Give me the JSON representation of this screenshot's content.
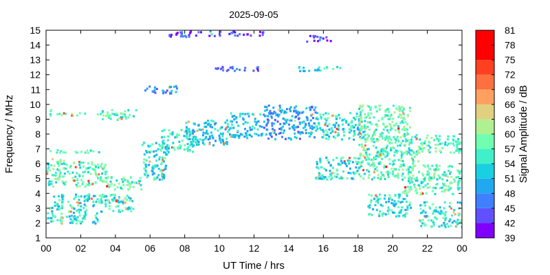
{
  "chart_data": {
    "type": "heatmap",
    "title": "2025-09-05",
    "xlabel": "UT Time / hrs",
    "ylabel": "Frequency / MHz",
    "colorbar_label": "Signal Amplitude / dB",
    "xlim": [
      0,
      24
    ],
    "ylim": [
      1,
      15
    ],
    "x_ticks": [
      "00",
      "02",
      "04",
      "06",
      "08",
      "10",
      "12",
      "14",
      "16",
      "18",
      "20",
      "22",
      "00"
    ],
    "y_ticks": [
      1,
      2,
      3,
      4,
      5,
      6,
      7,
      8,
      9,
      10,
      11,
      12,
      13,
      14,
      15
    ],
    "colorbar_ticks": [
      39,
      42,
      45,
      48,
      51,
      54,
      57,
      60,
      63,
      66,
      69,
      72,
      75,
      78,
      81
    ],
    "colorbar_levels": [
      {
        "min": 39,
        "max": 42,
        "color": "#8000ff"
      },
      {
        "min": 42,
        "max": 45,
        "color": "#6050ff"
      },
      {
        "min": 45,
        "max": 48,
        "color": "#4080ff"
      },
      {
        "min": 48,
        "max": 51,
        "color": "#20a8f0"
      },
      {
        "min": 51,
        "max": 54,
        "color": "#18d0e0"
      },
      {
        "min": 54,
        "max": 57,
        "color": "#40f0c8"
      },
      {
        "min": 57,
        "max": 60,
        "color": "#70ffb0"
      },
      {
        "min": 60,
        "max": 63,
        "color": "#b0f090"
      },
      {
        "min": 63,
        "max": 66,
        "color": "#e0d080"
      },
      {
        "min": 66,
        "max": 69,
        "color": "#ffa060"
      },
      {
        "min": 69,
        "max": 72,
        "color": "#ff7040"
      },
      {
        "min": 72,
        "max": 75,
        "color": "#ff4020"
      },
      {
        "min": 75,
        "max": 81,
        "color": "#ff0000"
      }
    ],
    "series": [
      {
        "regions": [
          {
            "t0": 0.0,
            "t1": 0.3,
            "f0": 9.2,
            "f1": 9.8,
            "db": 57
          },
          {
            "t0": 0.3,
            "t1": 3.0,
            "f0": 9.3,
            "f1": 9.5,
            "db": 57
          },
          {
            "t0": 3.0,
            "t1": 5.2,
            "f0": 9.0,
            "f1": 9.7,
            "db": 57
          },
          {
            "t0": 0.0,
            "t1": 3.3,
            "f0": 6.8,
            "f1": 7.0,
            "db": 57
          },
          {
            "t0": 0.0,
            "t1": 1.0,
            "f0": 6.2,
            "f1": 6.4,
            "db": 63
          },
          {
            "t0": 0.0,
            "t1": 3.5,
            "f0": 4.5,
            "f1": 6.2,
            "db": 57
          },
          {
            "t0": 3.5,
            "t1": 5.5,
            "f0": 4.3,
            "f1": 5.2,
            "db": 57
          },
          {
            "t0": 0.0,
            "t1": 5.0,
            "f0": 2.8,
            "f1": 4.0,
            "db": 54
          },
          {
            "t0": 0.0,
            "t1": 3.0,
            "f0": 2.0,
            "f1": 2.8,
            "db": 54
          },
          {
            "t0": 5.5,
            "t1": 7.0,
            "f0": 5.0,
            "f1": 7.5,
            "db": 54
          },
          {
            "t0": 6.5,
            "t1": 8.5,
            "f0": 6.8,
            "f1": 8.5,
            "db": 54
          },
          {
            "t0": 8.0,
            "t1": 10.5,
            "f0": 7.3,
            "f1": 9.0,
            "db": 52
          },
          {
            "t0": 10.5,
            "t1": 12.5,
            "f0": 7.8,
            "f1": 9.5,
            "db": 52
          },
          {
            "t0": 12.5,
            "t1": 15.5,
            "f0": 7.7,
            "f1": 10.0,
            "db": 49
          },
          {
            "t0": 15.5,
            "t1": 18.5,
            "f0": 7.7,
            "f1": 9.5,
            "db": 54
          },
          {
            "t0": 18.0,
            "t1": 21.0,
            "f0": 6.8,
            "f1": 10.0,
            "db": 58
          },
          {
            "t0": 21.0,
            "t1": 24.0,
            "f0": 6.8,
            "f1": 8.0,
            "db": 57
          },
          {
            "t0": 15.5,
            "t1": 18.0,
            "f0": 5.0,
            "f1": 6.5,
            "db": 54
          },
          {
            "t0": 18.0,
            "t1": 21.5,
            "f0": 5.0,
            "f1": 7.0,
            "db": 57
          },
          {
            "t0": 20.5,
            "t1": 24.0,
            "f0": 4.0,
            "f1": 6.0,
            "db": 57
          },
          {
            "t0": 18.5,
            "t1": 21.0,
            "f0": 2.5,
            "f1": 4.0,
            "db": 54
          },
          {
            "t0": 21.5,
            "t1": 24.0,
            "f0": 1.8,
            "f1": 3.5,
            "db": 54
          },
          {
            "t0": 7.0,
            "t1": 10.0,
            "f0": 14.6,
            "f1": 15.0,
            "db": 45
          },
          {
            "t0": 10.0,
            "t1": 12.5,
            "f0": 14.7,
            "f1": 15.0,
            "db": 42
          },
          {
            "t0": 9.5,
            "t1": 12.5,
            "f0": 12.3,
            "f1": 12.6,
            "db": 44
          },
          {
            "t0": 14.5,
            "t1": 17.0,
            "f0": 12.3,
            "f1": 12.6,
            "db": 53
          },
          {
            "t0": 15.0,
            "t1": 16.5,
            "f0": 14.3,
            "f1": 14.7,
            "db": 44
          },
          {
            "t0": 5.5,
            "t1": 7.5,
            "f0": 10.8,
            "f1": 11.3,
            "db": 48
          }
        ]
      }
    ]
  }
}
